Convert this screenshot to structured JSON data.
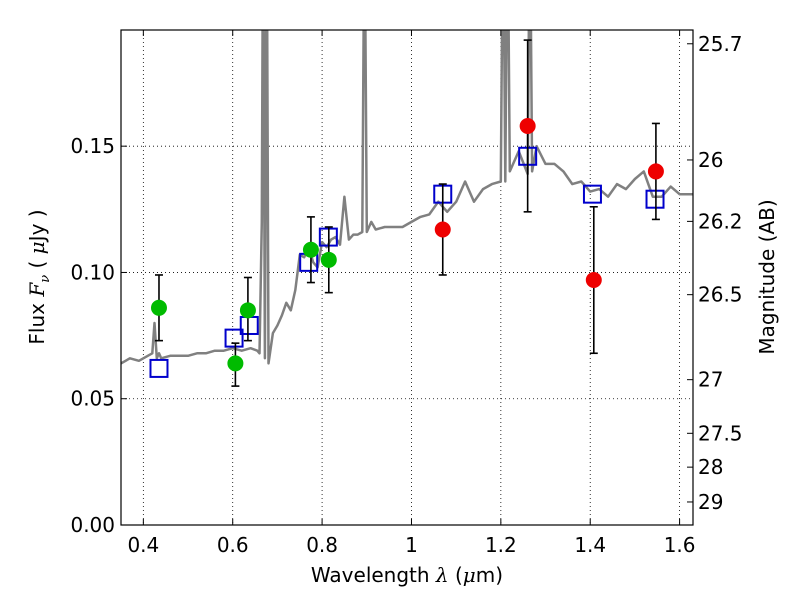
{
  "chart_data": {
    "type": "scatter",
    "xlabel": {
      "prefix": "Wavelength  ",
      "symbol": "λ",
      "open": " (",
      "unit_symbol": "μ",
      "unit_rest": "m)"
    },
    "ylabel": {
      "prefix": "Flux  ",
      "symbol": "F",
      "subscript": "ν",
      "open": " (  ",
      "unit_symbol": "μ",
      "unit_rest": "Jy )"
    },
    "ylabel_right": "Magnitude (AB)",
    "xlim": [
      0.35,
      1.63
    ],
    "ylim": [
      0.0,
      0.196
    ],
    "x_ticks": [
      "0.4",
      "0.6",
      "0.8",
      "1",
      "1.2",
      "1.4",
      "1.6"
    ],
    "y_ticks": [
      "0.00",
      "0.05",
      "0.10",
      "0.15"
    ],
    "right_ticks": [
      {
        "label": "25.7",
        "mag": 25.7
      },
      {
        "label": "26",
        "mag": 26.0
      },
      {
        "label": "26.2",
        "mag": 26.2
      },
      {
        "label": "26.5",
        "mag": 26.5
      },
      {
        "label": "27",
        "mag": 27.0
      },
      {
        "label": "27.5",
        "mag": 27.5
      },
      {
        "label": "28",
        "mag": 28.0
      },
      {
        "label": "29",
        "mag": 29.0
      }
    ],
    "grid": true,
    "colors": {
      "template": "#808080",
      "model": "#0000cc",
      "optical": "#00bb00",
      "nir": "#ee0000",
      "errorbar": "#000000"
    },
    "template_spectrum": {
      "x": [
        0.35,
        0.37,
        0.39,
        0.41,
        0.42,
        0.425,
        0.43,
        0.435,
        0.44,
        0.46,
        0.48,
        0.5,
        0.52,
        0.54,
        0.56,
        0.58,
        0.6,
        0.62,
        0.64,
        0.655,
        0.66,
        0.665,
        0.668,
        0.672,
        0.676,
        0.68,
        0.69,
        0.7,
        0.71,
        0.72,
        0.73,
        0.74,
        0.75,
        0.76,
        0.77,
        0.78,
        0.79,
        0.8,
        0.81,
        0.82,
        0.83,
        0.84,
        0.85,
        0.86,
        0.87,
        0.88,
        0.89,
        0.895,
        0.9,
        0.905,
        0.91,
        0.92,
        0.94,
        0.96,
        0.98,
        1.0,
        1.02,
        1.04,
        1.06,
        1.08,
        1.1,
        1.12,
        1.14,
        1.16,
        1.18,
        1.2,
        1.205,
        1.21,
        1.215,
        1.22,
        1.24,
        1.26,
        1.265,
        1.27,
        1.28,
        1.3,
        1.32,
        1.34,
        1.36,
        1.38,
        1.4,
        1.42,
        1.44,
        1.46,
        1.48,
        1.5,
        1.52,
        1.54,
        1.56,
        1.58,
        1.6,
        1.63
      ],
      "y": [
        0.064,
        0.066,
        0.065,
        0.067,
        0.068,
        0.08,
        0.066,
        0.068,
        0.066,
        0.067,
        0.067,
        0.067,
        0.068,
        0.068,
        0.069,
        0.069,
        0.07,
        0.069,
        0.07,
        0.069,
        0.068,
        0.12,
        0.25,
        0.066,
        0.25,
        0.064,
        0.076,
        0.079,
        0.083,
        0.088,
        0.085,
        0.093,
        0.107,
        0.106,
        0.11,
        0.104,
        0.102,
        0.112,
        0.11,
        0.113,
        0.114,
        0.111,
        0.13,
        0.113,
        0.115,
        0.115,
        0.116,
        0.25,
        0.116,
        0.118,
        0.12,
        0.117,
        0.118,
        0.118,
        0.118,
        0.12,
        0.122,
        0.123,
        0.128,
        0.124,
        0.128,
        0.136,
        0.128,
        0.133,
        0.135,
        0.136,
        0.25,
        0.136,
        0.25,
        0.14,
        0.148,
        0.139,
        0.25,
        0.14,
        0.15,
        0.143,
        0.143,
        0.14,
        0.135,
        0.136,
        0.132,
        0.133,
        0.13,
        0.135,
        0.133,
        0.137,
        0.14,
        0.13,
        0.13,
        0.134,
        0.131,
        0.131
      ]
    },
    "model_points": {
      "x": [
        0.435,
        0.603,
        0.637,
        0.77,
        0.814,
        1.07,
        1.26,
        1.405,
        1.545
      ],
      "y": [
        0.062,
        0.074,
        0.079,
        0.104,
        0.114,
        0.131,
        0.146,
        0.131,
        0.129
      ]
    },
    "optical_points": {
      "x": [
        0.435,
        0.606,
        0.634,
        0.775,
        0.815
      ],
      "y": [
        0.086,
        0.064,
        0.085,
        0.109,
        0.105
      ],
      "err_low": [
        0.073,
        0.055,
        0.073,
        0.096,
        0.092
      ],
      "err_high": [
        0.099,
        0.072,
        0.098,
        0.122,
        0.118
      ]
    },
    "nir_points": {
      "x": [
        1.07,
        1.26,
        1.408,
        1.547
      ],
      "y": [
        0.117,
        0.158,
        0.097,
        0.14
      ],
      "err_low": [
        0.099,
        0.124,
        0.068,
        0.121
      ],
      "err_high": [
        0.135,
        0.192,
        0.126,
        0.159
      ]
    }
  }
}
